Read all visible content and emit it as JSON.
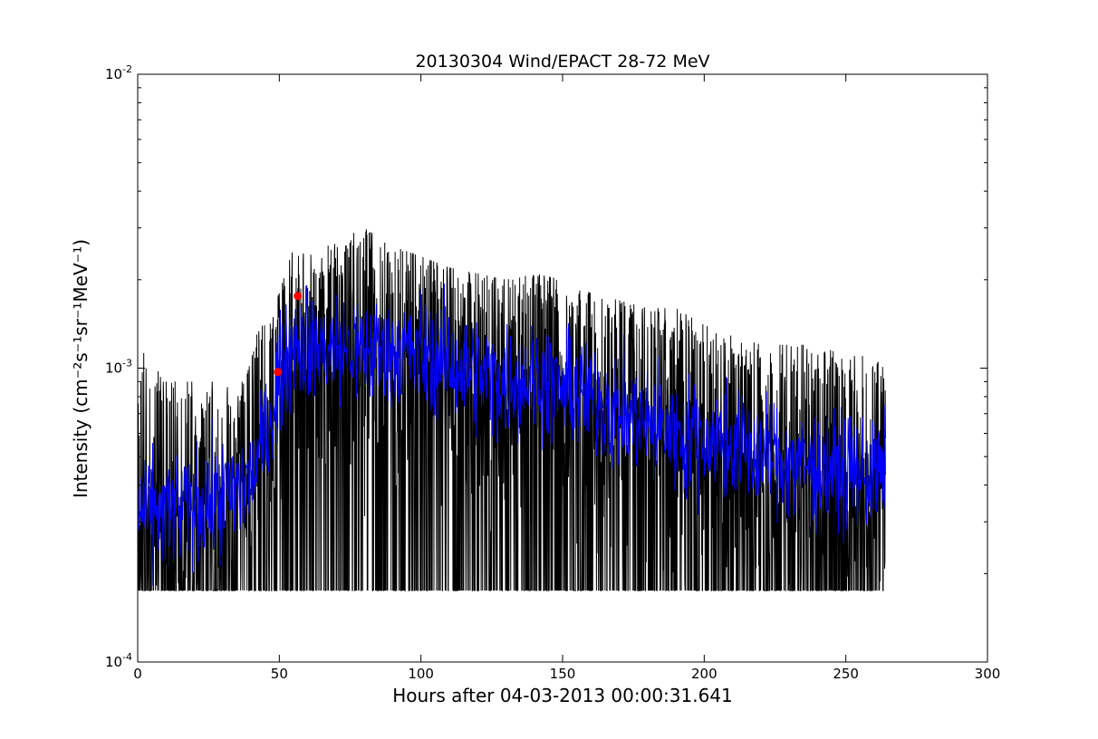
{
  "chart_data": {
    "type": "line",
    "title": "20130304 Wind/EPACT 28-72 MeV",
    "xlabel": "Hours after 04-03-2013 00:00:31.641",
    "ylabel": "Intensity (cm⁻²s⁻¹sr⁻¹MeV⁻¹)",
    "xlim": [
      0,
      300
    ],
    "ylim": [
      0.0001,
      0.01
    ],
    "yscale": "log",
    "grid": false,
    "x_ticks": [
      {
        "value": 0,
        "label": "0"
      },
      {
        "value": 50,
        "label": "50"
      },
      {
        "value": 100,
        "label": "100"
      },
      {
        "value": 150,
        "label": "150"
      },
      {
        "value": 200,
        "label": "200"
      },
      {
        "value": 250,
        "label": "250"
      },
      {
        "value": 300,
        "label": "300"
      }
    ],
    "y_ticks": [
      {
        "value": 0.0001,
        "base": "10",
        "exp": "-4"
      },
      {
        "value": 0.001,
        "base": "10",
        "exp": "-3"
      },
      {
        "value": 0.01,
        "base": "10",
        "exp": "-2"
      }
    ],
    "series": [
      {
        "color": "#000000",
        "style": "noisy-line",
        "floor": 0.000175,
        "x": [
          0,
          10,
          20,
          30,
          38,
          42,
          46,
          50,
          55,
          60,
          70,
          80,
          90,
          100,
          110,
          120,
          130,
          140,
          150,
          160,
          170,
          180,
          190,
          200,
          210,
          220,
          230,
          240,
          250,
          260,
          264
        ],
        "upper": [
          0.0012,
          0.0009,
          0.0009,
          0.0009,
          0.0009,
          0.0013,
          0.0015,
          0.0018,
          0.0026,
          0.0024,
          0.0027,
          0.003,
          0.0026,
          0.0024,
          0.0022,
          0.0021,
          0.002,
          0.0021,
          0.002,
          0.0018,
          0.0017,
          0.0016,
          0.0016,
          0.0014,
          0.0013,
          0.0012,
          0.0012,
          0.0012,
          0.0011,
          0.0011,
          0.0011
        ]
      },
      {
        "color": "#0000ff",
        "style": "smoothed-line",
        "x": [
          0,
          10,
          20,
          30,
          38,
          42,
          46,
          50,
          55,
          60,
          70,
          80,
          90,
          100,
          110,
          120,
          130,
          140,
          150,
          160,
          170,
          180,
          190,
          200,
          210,
          220,
          230,
          240,
          250,
          260,
          264
        ],
        "values": [
          0.00033,
          0.00032,
          0.00034,
          0.00036,
          0.0004,
          0.00047,
          0.00063,
          0.00092,
          0.00125,
          0.0012,
          0.00115,
          0.00115,
          0.00115,
          0.00112,
          0.00105,
          0.00095,
          0.0009,
          0.00093,
          0.00085,
          0.0008,
          0.0007,
          0.00065,
          0.0006,
          0.00058,
          0.00055,
          0.0005,
          0.00048,
          0.00046,
          0.00045,
          0.00043,
          0.00042
        ]
      }
    ],
    "markers": [
      {
        "x": 49.5,
        "y": 0.00097,
        "color": "#ff0000"
      },
      {
        "x": 56.5,
        "y": 0.00176,
        "color": "#ff0000"
      }
    ]
  }
}
